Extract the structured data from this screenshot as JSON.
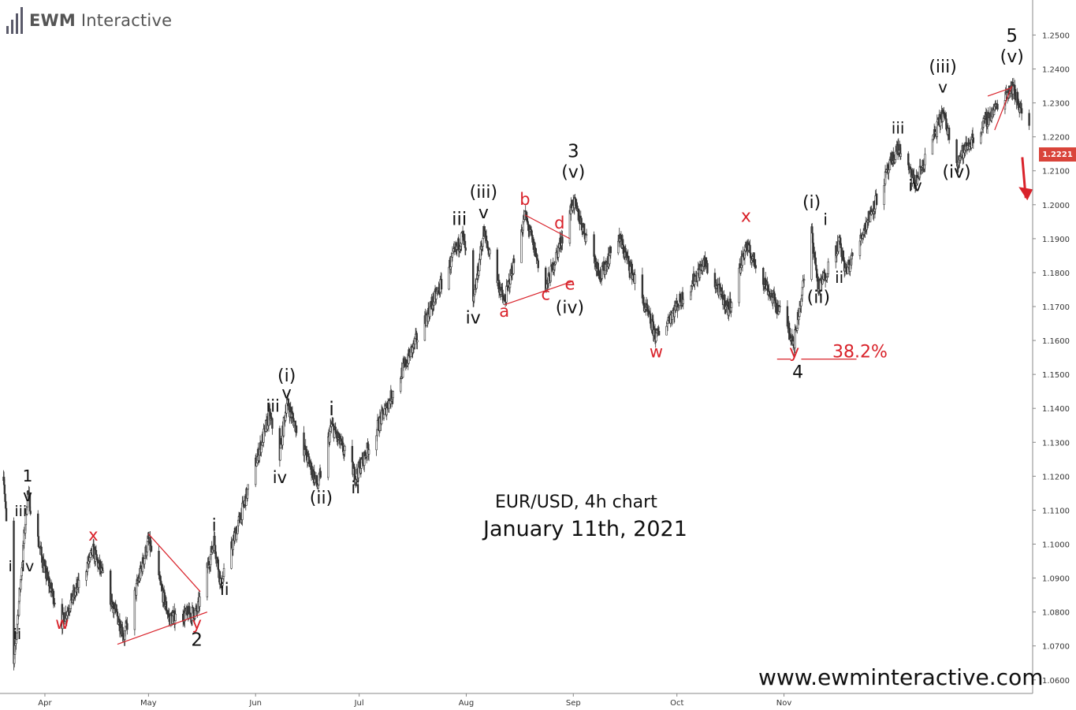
{
  "brand": {
    "name_bold": "EWM",
    "name_rest": " Interactive"
  },
  "title": "EUR/USD, 4h chart",
  "subtitle": "January 11th, 2021",
  "website": "www.ewminteractive.com",
  "current_price": "1.2221",
  "colors": {
    "wave_red": "#d9222a",
    "candle": "#333333",
    "price_tag": "#d9443a"
  },
  "chart_data": {
    "type": "candlestick",
    "y_axis_ticks": [
      "1.2500",
      "1.2400",
      "1.2300",
      "1.2200",
      "1.2100",
      "1.2000",
      "1.1900",
      "1.1800",
      "1.1700",
      "1.1600",
      "1.1500",
      "1.1400",
      "1.1300",
      "1.1200",
      "1.1100",
      "1.1000",
      "1.0900",
      "1.0800",
      "1.0700",
      "1.0600"
    ],
    "x_axis_ticks": [
      "Apr",
      "May",
      "Jun",
      "Jul",
      "Aug",
      "Sep",
      "Oct",
      "Nov"
    ],
    "ylim": [
      1.056,
      1.258
    ],
    "pivots": [
      {
        "d": "2020-03-20",
        "p": 1.122
      },
      {
        "d": "2020-03-23",
        "p": 1.064
      },
      {
        "d": "2020-03-27",
        "p": 1.115
      },
      {
        "d": "2020-04-01",
        "p": 1.092
      },
      {
        "d": "2020-04-06",
        "p": 1.077
      },
      {
        "d": "2020-04-15",
        "p": 1.098
      },
      {
        "d": "2020-04-24",
        "p": 1.073
      },
      {
        "d": "2020-05-01",
        "p": 1.101
      },
      {
        "d": "2020-05-07",
        "p": 1.078
      },
      {
        "d": "2020-05-15",
        "p": 1.08
      },
      {
        "d": "2020-05-20",
        "p": 1.101
      },
      {
        "d": "2020-05-22",
        "p": 1.088
      },
      {
        "d": "2020-06-05",
        "p": 1.138
      },
      {
        "d": "2020-06-08",
        "p": 1.126
      },
      {
        "d": "2020-06-10",
        "p": 1.142
      },
      {
        "d": "2020-06-19",
        "p": 1.117
      },
      {
        "d": "2020-06-23",
        "p": 1.135
      },
      {
        "d": "2020-06-30",
        "p": 1.12
      },
      {
        "d": "2020-07-31",
        "p": 1.191
      },
      {
        "d": "2020-08-03",
        "p": 1.17
      },
      {
        "d": "2020-08-06",
        "p": 1.192
      },
      {
        "d": "2020-08-12",
        "p": 1.171
      },
      {
        "d": "2020-08-18",
        "p": 1.197
      },
      {
        "d": "2020-08-24",
        "p": 1.175
      },
      {
        "d": "2020-09-01",
        "p": 1.201
      },
      {
        "d": "2020-09-09",
        "p": 1.179
      },
      {
        "d": "2020-09-14",
        "p": 1.191
      },
      {
        "d": "2020-09-25",
        "p": 1.161
      },
      {
        "d": "2020-10-06",
        "p": 1.178
      },
      {
        "d": "2020-10-09",
        "p": 1.183
      },
      {
        "d": "2020-10-16",
        "p": 1.169
      },
      {
        "d": "2020-10-21",
        "p": 1.188
      },
      {
        "d": "2020-11-04",
        "p": 1.16
      },
      {
        "d": "2020-11-09",
        "p": 1.192
      },
      {
        "d": "2020-11-11",
        "p": 1.175
      },
      {
        "d": "2020-11-17",
        "p": 1.189
      },
      {
        "d": "2020-11-19",
        "p": 1.18
      },
      {
        "d": "2020-12-04",
        "p": 1.217
      },
      {
        "d": "2020-12-09",
        "p": 1.206
      },
      {
        "d": "2020-12-17",
        "p": 1.227
      },
      {
        "d": "2020-12-21",
        "p": 1.213
      },
      {
        "d": "2021-01-06",
        "p": 1.235
      },
      {
        "d": "2021-01-11",
        "p": 1.2221
      }
    ],
    "annotations": [
      {
        "text": "1",
        "d": "2020-03-27",
        "p": 1.1185,
        "c": "black",
        "s": 20
      },
      {
        "text": "v",
        "d": "2020-03-27",
        "p": 1.1127,
        "c": "black",
        "s": 20
      },
      {
        "text": "iii",
        "d": "2020-03-25",
        "p": 1.1082,
        "c": "black",
        "s": 19
      },
      {
        "text": "i",
        "d": "2020-03-22",
        "p": 1.092,
        "c": "black",
        "s": 19
      },
      {
        "text": "iv",
        "d": "2020-03-27",
        "p": 1.092,
        "c": "black",
        "s": 19
      },
      {
        "text": "ii",
        "d": "2020-03-24",
        "p": 1.072,
        "c": "black",
        "s": 19
      },
      {
        "text": "w",
        "d": "2020-04-06",
        "p": 1.075,
        "c": "red",
        "s": 21
      },
      {
        "text": "x",
        "d": "2020-04-15",
        "p": 1.101,
        "c": "red",
        "s": 21
      },
      {
        "text": "y",
        "d": "2020-05-15",
        "p": 1.075,
        "c": "red",
        "s": 21
      },
      {
        "text": "2",
        "d": "2020-05-15",
        "p": 1.07,
        "c": "black",
        "s": 23
      },
      {
        "text": "i",
        "d": "2020-05-20",
        "p": 1.104,
        "c": "black",
        "s": 21
      },
      {
        "text": "ii",
        "d": "2020-05-23",
        "p": 1.085,
        "c": "black",
        "s": 21
      },
      {
        "text": "(i)",
        "d": "2020-06-10",
        "p": 1.148,
        "c": "black",
        "s": 22
      },
      {
        "text": "v",
        "d": "2020-06-10",
        "p": 1.143,
        "c": "black",
        "s": 21
      },
      {
        "text": "iii",
        "d": "2020-06-06",
        "p": 1.139,
        "c": "black",
        "s": 21
      },
      {
        "text": "iv",
        "d": "2020-06-08",
        "p": 1.118,
        "c": "black",
        "s": 21
      },
      {
        "text": "(ii)",
        "d": "2020-06-20",
        "p": 1.112,
        "c": "black",
        "s": 22
      },
      {
        "text": "i",
        "d": "2020-06-23",
        "p": 1.138,
        "c": "black",
        "s": 24
      },
      {
        "text": "ii",
        "d": "2020-06-30",
        "p": 1.115,
        "c": "black",
        "s": 21
      },
      {
        "text": "iii",
        "d": "2020-07-30",
        "p": 1.194,
        "c": "black",
        "s": 23
      },
      {
        "text": "(iii)",
        "d": "2020-08-06",
        "p": 1.202,
        "c": "black",
        "s": 22
      },
      {
        "text": "v",
        "d": "2020-08-06",
        "p": 1.196,
        "c": "black",
        "s": 22
      },
      {
        "text": "iv",
        "d": "2020-08-03",
        "p": 1.165,
        "c": "black",
        "s": 22
      },
      {
        "text": "a",
        "d": "2020-08-12",
        "p": 1.167,
        "c": "red",
        "s": 21
      },
      {
        "text": "b",
        "d": "2020-08-18",
        "p": 1.2,
        "c": "red",
        "s": 21
      },
      {
        "text": "c",
        "d": "2020-08-24",
        "p": 1.172,
        "c": "red",
        "s": 21
      },
      {
        "text": "d",
        "d": "2020-08-28",
        "p": 1.193,
        "c": "red",
        "s": 21
      },
      {
        "text": "e",
        "d": "2020-08-31",
        "p": 1.175,
        "c": "red",
        "s": 21
      },
      {
        "text": "(iv)",
        "d": "2020-08-31",
        "p": 1.168,
        "c": "black",
        "s": 22
      },
      {
        "text": "3",
        "d": "2020-09-01",
        "p": 1.214,
        "c": "black",
        "s": 23
      },
      {
        "text": "(v)",
        "d": "2020-09-01",
        "p": 1.208,
        "c": "black",
        "s": 22
      },
      {
        "text": "w",
        "d": "2020-09-25",
        "p": 1.155,
        "c": "red",
        "s": 21
      },
      {
        "text": "x",
        "d": "2020-10-21",
        "p": 1.195,
        "c": "red",
        "s": 22
      },
      {
        "text": "y",
        "d": "2020-11-04",
        "p": 1.155,
        "c": "red",
        "s": 22
      },
      {
        "text": "38.2%",
        "d": "2020-11-23",
        "p": 1.155,
        "c": "red",
        "s": 22
      },
      {
        "text": "4",
        "d": "2020-11-05",
        "p": 1.149,
        "c": "black",
        "s": 22
      },
      {
        "text": "(i)",
        "d": "2020-11-09",
        "p": 1.199,
        "c": "black",
        "s": 22
      },
      {
        "text": "(ii)",
        "d": "2020-11-11",
        "p": 1.171,
        "c": "black",
        "s": 22
      },
      {
        "text": "i",
        "d": "2020-11-13",
        "p": 1.194,
        "c": "black",
        "s": 20
      },
      {
        "text": "ii",
        "d": "2020-11-17",
        "p": 1.177,
        "c": "black",
        "s": 20
      },
      {
        "text": "iii",
        "d": "2020-12-04",
        "p": 1.221,
        "c": "black",
        "s": 20
      },
      {
        "text": "iv",
        "d": "2020-12-09",
        "p": 1.204,
        "c": "black",
        "s": 20
      },
      {
        "text": "(iii)",
        "d": "2020-12-17",
        "p": 1.239,
        "c": "black",
        "s": 22
      },
      {
        "text": "v",
        "d": "2020-12-17",
        "p": 1.233,
        "c": "black",
        "s": 20
      },
      {
        "text": "(iv)",
        "d": "2020-12-21",
        "p": 1.208,
        "c": "black",
        "s": 22
      },
      {
        "text": "5",
        "d": "2021-01-06",
        "p": 1.248,
        "c": "black",
        "s": 23
      },
      {
        "text": "(v)",
        "d": "2021-01-06",
        "p": 1.242,
        "c": "black",
        "s": 22
      }
    ],
    "trendlines": [
      {
        "from": {
          "d": "2020-04-22",
          "p": 1.0705
        },
        "to": {
          "d": "2020-05-18",
          "p": 1.08
        }
      },
      {
        "from": {
          "d": "2020-05-01",
          "p": 1.103
        },
        "to": {
          "d": "2020-05-16",
          "p": 1.086
        }
      },
      {
        "from": {
          "d": "2020-08-12",
          "p": 1.1705
        },
        "to": {
          "d": "2020-09-01",
          "p": 1.1775
        }
      },
      {
        "from": {
          "d": "2020-08-18",
          "p": 1.197
        },
        "to": {
          "d": "2020-08-31",
          "p": 1.19
        }
      },
      {
        "from": {
          "d": "2020-10-30",
          "p": 1.1545
        },
        "to": {
          "d": "2020-11-03",
          "p": 1.1545
        }
      },
      {
        "from": {
          "d": "2020-11-06",
          "p": 1.1545
        },
        "to": {
          "d": "2020-11-22",
          "p": 1.1545
        }
      },
      {
        "from": {
          "d": "2020-12-30",
          "p": 1.232
        },
        "to": {
          "d": "2021-01-06",
          "p": 1.2345
        }
      },
      {
        "from": {
          "d": "2021-01-01",
          "p": 1.222
        },
        "to": {
          "d": "2021-01-06",
          "p": 1.235
        }
      }
    ],
    "arrow": {
      "from": {
        "d": "2021-01-09",
        "p": 1.214
      },
      "to": {
        "d": "2021-01-10",
        "p": 1.202
      }
    }
  }
}
